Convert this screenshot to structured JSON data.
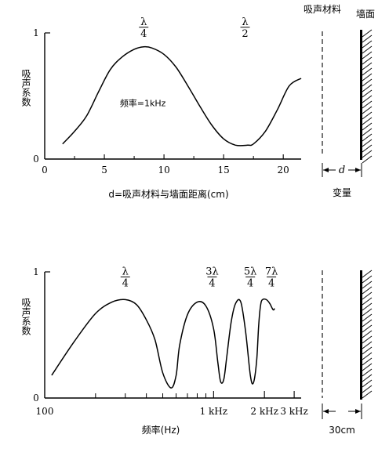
{
  "chart_data": [
    {
      "type": "line",
      "xlabel": "d=吸声材料与墙面距离(cm)",
      "ylabel": "吸声系数",
      "xlim": [
        0,
        21.5
      ],
      "ylim": [
        0,
        1
      ],
      "x_ticks": [
        "0",
        "5",
        "10",
        "15",
        "20"
      ],
      "x_minor_ticks": [
        2.5,
        7.5,
        12.5,
        17.5
      ],
      "y_ticks": [
        "0",
        "1"
      ],
      "annotations": [
        {
          "text": "频率=1kHz",
          "x": 6.3,
          "y": 0.42
        },
        {
          "num": "λ",
          "den": "4",
          "x": 8.3,
          "y": 1.02
        },
        {
          "num": "λ",
          "den": "2",
          "x": 16.8,
          "y": 1.02
        }
      ],
      "series": [
        {
          "x": [
            1.5,
            2.5,
            3.5,
            4.5,
            5.5,
            6.5,
            7.5,
            8.3,
            9.0,
            10.0,
            11.0,
            12.0,
            13.0,
            14.0,
            15.0,
            16.0,
            17.0,
            17.5,
            18.5,
            19.5,
            20.5,
            21.5
          ],
          "y": [
            0.12,
            0.22,
            0.34,
            0.53,
            0.71,
            0.81,
            0.87,
            0.89,
            0.88,
            0.83,
            0.73,
            0.58,
            0.42,
            0.27,
            0.16,
            0.11,
            0.11,
            0.12,
            0.22,
            0.39,
            0.58,
            0.64
          ]
        }
      ],
      "wall_diagram": {
        "material_label": "吸声材料",
        "wall_label": "墙面",
        "gap_label": "d",
        "caption": "变量"
      }
    },
    {
      "type": "line",
      "xlabel": "频率(Hz)",
      "ylabel": "吸声系数",
      "xscale": "log",
      "xlim": [
        100,
        3300
      ],
      "ylim": [
        0,
        1
      ],
      "x_ticks": [
        "100",
        "1 kHz",
        "2 kHz",
        "3 kHz"
      ],
      "x_minor_ticks": [
        200,
        300,
        400,
        500,
        600,
        700,
        800,
        900
      ],
      "y_ticks": [
        "0",
        "1"
      ],
      "annotations": [
        {
          "num": "λ",
          "den": "4",
          "x": 300,
          "y": 0.96
        },
        {
          "num": "3λ",
          "den": "4",
          "x": 980,
          "y": 0.96
        },
        {
          "num": "5λ",
          "den": "4",
          "x": 1650,
          "y": 0.96
        },
        {
          "num": "7λ",
          "den": "4",
          "x": 2200,
          "y": 0.96
        }
      ],
      "series": [
        {
          "x": [
            110,
            150,
            200,
            250,
            300,
            350,
            400,
            450,
            500,
            560,
            600,
            630,
            700,
            800,
            900,
            1000,
            1060,
            1100,
            1150,
            1200,
            1270,
            1350,
            1450,
            1550,
            1650,
            1720,
            1800,
            1850,
            1900,
            1950,
            2050,
            2150,
            2250,
            2300
          ],
          "y": [
            0.18,
            0.45,
            0.67,
            0.76,
            0.78,
            0.74,
            0.62,
            0.46,
            0.2,
            0.08,
            0.18,
            0.42,
            0.66,
            0.76,
            0.73,
            0.55,
            0.28,
            0.13,
            0.15,
            0.34,
            0.6,
            0.75,
            0.76,
            0.52,
            0.18,
            0.12,
            0.3,
            0.58,
            0.74,
            0.78,
            0.78,
            0.75,
            0.7,
            0.71
          ]
        }
      ],
      "wall_diagram": {
        "caption": "30cm"
      }
    }
  ]
}
